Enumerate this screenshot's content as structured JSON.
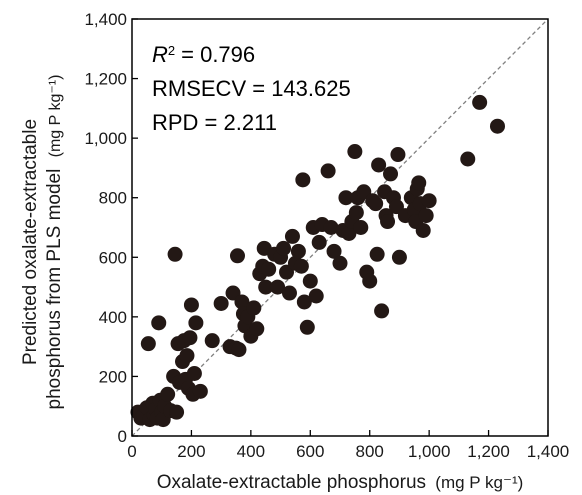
{
  "chart_data": {
    "type": "scatter",
    "xlabel": "Oxalate-extractable phosphorus",
    "xlabel_unit": "(mg P kg⁻¹)",
    "ylabel_line1": "Predicted oxalate-extractable",
    "ylabel_line2": "phosphorus from PLS model",
    "ylabel_unit": "(mg P kg⁻¹)",
    "xlim": [
      0,
      1400
    ],
    "ylim": [
      0,
      1400
    ],
    "x_ticks": [
      0,
      200,
      400,
      600,
      800,
      1000,
      1200,
      1400
    ],
    "y_ticks": [
      0,
      200,
      400,
      600,
      800,
      1000,
      1200,
      1400
    ],
    "x_tick_labels": [
      "0",
      "200",
      "400",
      "600",
      "800",
      "1,000",
      "1,200",
      "1,400"
    ],
    "y_tick_labels": [
      "0",
      "200",
      "400",
      "600",
      "800",
      "1,000",
      "1,200",
      "1,400"
    ],
    "grid": false,
    "reference_line": "1:1 dashed",
    "stats": {
      "r2_label": "R",
      "r2_sup": "2",
      "r2_value": "= 0.796",
      "rmsecv": "RMSECV = 143.625",
      "rpd": "RPD = 2.211"
    },
    "marker_color": "#231815",
    "points": [
      [
        20,
        80
      ],
      [
        30,
        60
      ],
      [
        40,
        70
      ],
      [
        50,
        95
      ],
      [
        55,
        310
      ],
      [
        60,
        55
      ],
      [
        70,
        110
      ],
      [
        75,
        70
      ],
      [
        80,
        90
      ],
      [
        85,
        60
      ],
      [
        90,
        380
      ],
      [
        95,
        120
      ],
      [
        100,
        80
      ],
      [
        105,
        55
      ],
      [
        110,
        100
      ],
      [
        120,
        140
      ],
      [
        130,
        85
      ],
      [
        140,
        200
      ],
      [
        145,
        610
      ],
      [
        150,
        80
      ],
      [
        155,
        310
      ],
      [
        160,
        180
      ],
      [
        170,
        250
      ],
      [
        175,
        320
      ],
      [
        180,
        190
      ],
      [
        185,
        270
      ],
      [
        190,
        160
      ],
      [
        195,
        330
      ],
      [
        200,
        440
      ],
      [
        205,
        140
      ],
      [
        210,
        210
      ],
      [
        215,
        380
      ],
      [
        230,
        150
      ],
      [
        270,
        320
      ],
      [
        300,
        445
      ],
      [
        330,
        300
      ],
      [
        340,
        480
      ],
      [
        350,
        295
      ],
      [
        355,
        605
      ],
      [
        360,
        290
      ],
      [
        370,
        450
      ],
      [
        375,
        410
      ],
      [
        380,
        370
      ],
      [
        390,
        400
      ],
      [
        400,
        335
      ],
      [
        410,
        430
      ],
      [
        420,
        360
      ],
      [
        430,
        545
      ],
      [
        440,
        570
      ],
      [
        445,
        630
      ],
      [
        450,
        500
      ],
      [
        460,
        560
      ],
      [
        480,
        610
      ],
      [
        490,
        500
      ],
      [
        500,
        600
      ],
      [
        510,
        630
      ],
      [
        520,
        550
      ],
      [
        530,
        480
      ],
      [
        540,
        670
      ],
      [
        550,
        580
      ],
      [
        560,
        620
      ],
      [
        570,
        570
      ],
      [
        575,
        860
      ],
      [
        580,
        450
      ],
      [
        590,
        365
      ],
      [
        600,
        520
      ],
      [
        610,
        700
      ],
      [
        620,
        470
      ],
      [
        630,
        650
      ],
      [
        640,
        710
      ],
      [
        660,
        890
      ],
      [
        670,
        700
      ],
      [
        680,
        620
      ],
      [
        700,
        580
      ],
      [
        710,
        690
      ],
      [
        720,
        800
      ],
      [
        730,
        680
      ],
      [
        740,
        720
      ],
      [
        750,
        955
      ],
      [
        755,
        750
      ],
      [
        760,
        800
      ],
      [
        770,
        700
      ],
      [
        780,
        820
      ],
      [
        790,
        550
      ],
      [
        800,
        520
      ],
      [
        810,
        790
      ],
      [
        820,
        780
      ],
      [
        825,
        610
      ],
      [
        830,
        910
      ],
      [
        840,
        420
      ],
      [
        850,
        820
      ],
      [
        855,
        740
      ],
      [
        860,
        720
      ],
      [
        870,
        880
      ],
      [
        880,
        800
      ],
      [
        890,
        770
      ],
      [
        895,
        945
      ],
      [
        900,
        600
      ],
      [
        920,
        740
      ],
      [
        940,
        800
      ],
      [
        950,
        760
      ],
      [
        955,
        720
      ],
      [
        960,
        830
      ],
      [
        965,
        850
      ],
      [
        970,
        780
      ],
      [
        980,
        690
      ],
      [
        990,
        740
      ],
      [
        1000,
        790
      ],
      [
        1130,
        930
      ],
      [
        1170,
        1120
      ],
      [
        1230,
        1040
      ]
    ]
  }
}
